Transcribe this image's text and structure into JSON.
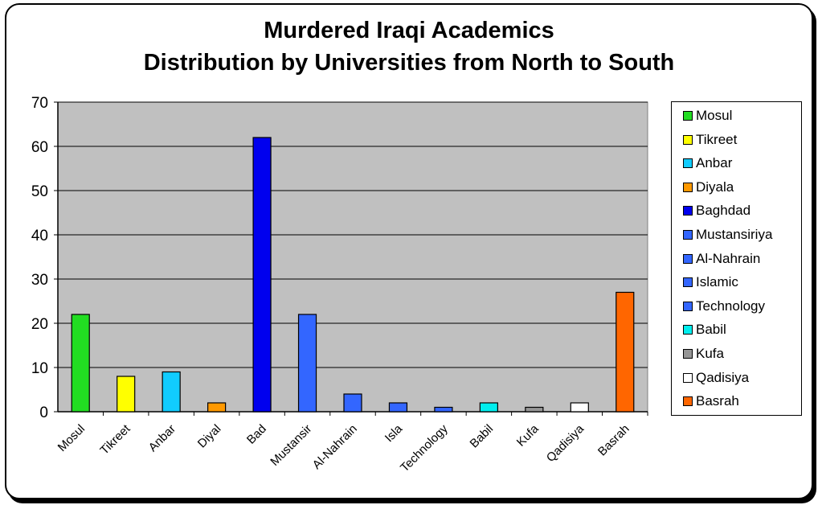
{
  "chart_data": {
    "type": "bar",
    "title": "Murdered Iraqi Academics",
    "subtitle": "Distribution by Universities from North to South",
    "xlabel": "",
    "ylabel": "",
    "ylim": [
      0,
      70
    ],
    "yticks": [
      0,
      10,
      20,
      30,
      40,
      50,
      60,
      70
    ],
    "grid": true,
    "legend_position": "right",
    "plot_background": "#c0c0c0",
    "categories": [
      "Mosul",
      "Tikreet",
      "Anbar",
      "Diyal",
      "Bad",
      "Mustansir",
      "Al-Nahrain",
      "Isla",
      "Technology",
      "Babil",
      "Kufa",
      "Qadisiya",
      "Basrah"
    ],
    "series": [
      {
        "name": "Mosul",
        "value": 22,
        "color": "#22dd22"
      },
      {
        "name": "Tikreet",
        "value": 8,
        "color": "#ffff00"
      },
      {
        "name": "Anbar",
        "value": 9,
        "color": "#11ccff"
      },
      {
        "name": "Diyala",
        "value": 2,
        "color": "#ff9900"
      },
      {
        "name": "Baghdad",
        "value": 62,
        "color": "#0000ee"
      },
      {
        "name": "Mustansiriya",
        "value": 22,
        "color": "#3366ff"
      },
      {
        "name": "Al-Nahrain",
        "value": 4,
        "color": "#3366ff"
      },
      {
        "name": "Islamic",
        "value": 2,
        "color": "#3366ff"
      },
      {
        "name": "Technology",
        "value": 1,
        "color": "#3366ff"
      },
      {
        "name": "Babil",
        "value": 2,
        "color": "#00eeee"
      },
      {
        "name": "Kufa",
        "value": 1,
        "color": "#969696"
      },
      {
        "name": "Qadisiya",
        "value": 2,
        "color": "#ffffff"
      },
      {
        "name": "Basrah",
        "value": 27,
        "color": "#ff6600"
      }
    ]
  }
}
